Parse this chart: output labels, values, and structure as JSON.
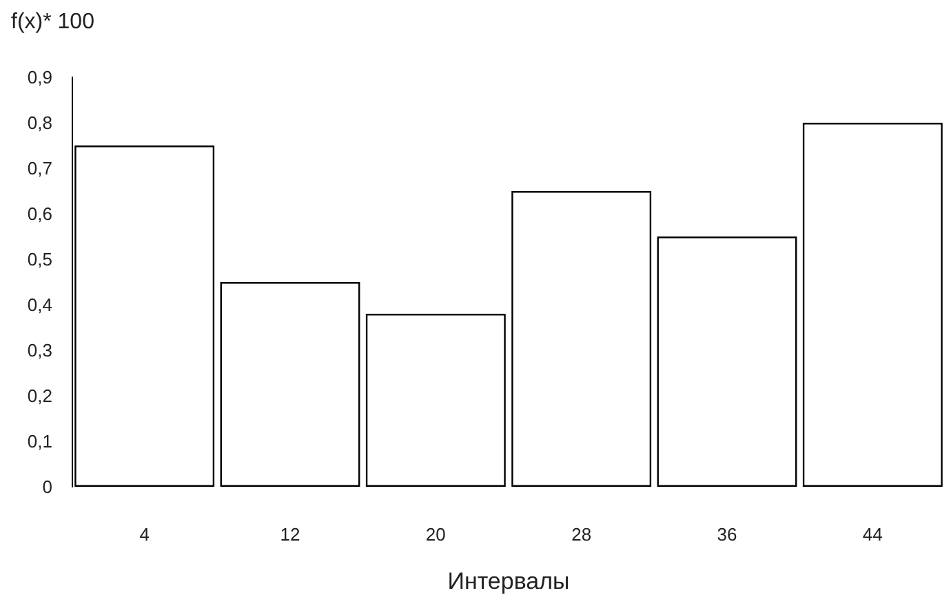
{
  "chart_data": {
    "type": "bar",
    "ylabel": "f(x)* 100",
    "xlabel": "Интервалы",
    "categories": [
      "4",
      "12",
      "20",
      "28",
      "36",
      "44"
    ],
    "values": [
      0.75,
      0.45,
      0.38,
      0.65,
      0.55,
      0.8
    ],
    "color": "#ffffff",
    "ylim": [
      0,
      0.9
    ],
    "yticks": [
      {
        "value": 0,
        "label": "0"
      },
      {
        "value": 0.1,
        "label": "0,1"
      },
      {
        "value": 0.2,
        "label": "0,2"
      },
      {
        "value": 0.3,
        "label": "0,3"
      },
      {
        "value": 0.4,
        "label": "0,4"
      },
      {
        "value": 0.5,
        "label": "0,5"
      },
      {
        "value": 0.6,
        "label": "0,6"
      },
      {
        "value": 0.7,
        "label": "0,7"
      },
      {
        "value": 0.8,
        "label": "0,8"
      },
      {
        "value": 0.9,
        "label": "0,9"
      }
    ],
    "grid": false
  }
}
